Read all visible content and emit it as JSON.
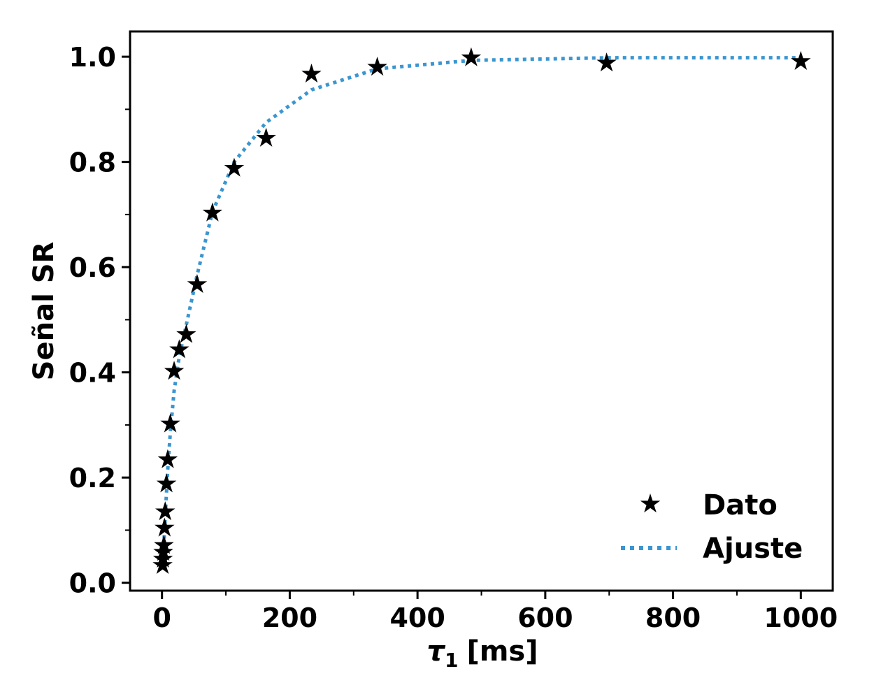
{
  "chart_data": {
    "type": "scatter",
    "xlabel": "τ",
    "xlabel_sub": "1",
    "xlabel_unit": "[ms]",
    "ylabel": "Señal SR",
    "xlim": [
      -50,
      1050
    ],
    "ylim": [
      -0.015,
      1.048
    ],
    "x_ticks": [
      0,
      200,
      400,
      600,
      800,
      1000
    ],
    "x_tick_labels": [
      "0",
      "200",
      "400",
      "600",
      "800",
      "1000"
    ],
    "x_minor_ticks": [
      100,
      300,
      500,
      700,
      900
    ],
    "y_ticks": [
      0.0,
      0.2,
      0.4,
      0.6,
      0.8,
      1.0
    ],
    "y_tick_labels": [
      "0.0",
      "0.2",
      "0.4",
      "0.6",
      "0.8",
      "1.0"
    ],
    "y_minor_ticks": [
      0.1,
      0.3,
      0.5,
      0.7,
      0.9
    ],
    "grid": false,
    "legend_position": "lower-right",
    "series": [
      {
        "name": "Dato",
        "type": "scatter",
        "marker": "star",
        "color": "#000000",
        "points": [
          [
            1,
            0.033
          ],
          [
            1.5,
            0.045
          ],
          [
            2,
            0.058
          ],
          [
            3,
            0.071
          ],
          [
            4,
            0.104
          ],
          [
            5,
            0.135
          ],
          [
            7,
            0.188
          ],
          [
            9,
            0.234
          ],
          [
            13,
            0.302
          ],
          [
            19,
            0.402
          ],
          [
            27,
            0.443
          ],
          [
            38,
            0.472
          ],
          [
            55,
            0.567
          ],
          [
            79,
            0.703
          ],
          [
            113,
            0.788
          ],
          [
            163,
            0.845
          ],
          [
            234,
            0.967
          ],
          [
            337,
            0.98
          ],
          [
            484,
            0.998
          ],
          [
            696,
            0.988
          ],
          [
            1000,
            0.991
          ]
        ]
      },
      {
        "name": "Ajuste",
        "type": "line",
        "style": "dotted",
        "color": "#3a96d0",
        "points": [
          [
            1,
            0.04
          ],
          [
            2,
            0.055
          ],
          [
            3,
            0.075
          ],
          [
            4,
            0.1
          ],
          [
            5,
            0.125
          ],
          [
            7,
            0.17
          ],
          [
            9,
            0.215
          ],
          [
            13,
            0.285
          ],
          [
            19,
            0.365
          ],
          [
            27,
            0.43
          ],
          [
            38,
            0.49
          ],
          [
            55,
            0.585
          ],
          [
            79,
            0.705
          ],
          [
            113,
            0.8
          ],
          [
            163,
            0.875
          ],
          [
            234,
            0.937
          ],
          [
            337,
            0.977
          ],
          [
            484,
            0.993
          ],
          [
            696,
            0.998
          ],
          [
            1000,
            0.998
          ]
        ]
      }
    ]
  }
}
